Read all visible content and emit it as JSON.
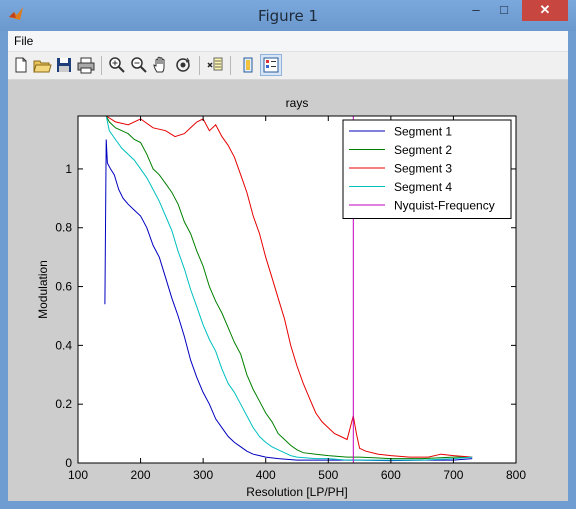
{
  "window": {
    "title": "Figure 1",
    "minimize": "‒",
    "maximize": "□",
    "close": "✕"
  },
  "menu": {
    "file": "File"
  },
  "toolbar": [
    "new-figure",
    "open-file",
    "save",
    "print",
    "zoom-in",
    "zoom-out",
    "pan",
    "rotate-3d",
    "insert-colorbar",
    "toggle-plot-tools",
    "show-plot-tools"
  ],
  "colors": {
    "segment1": "#0000bf",
    "segment2": "#007f00",
    "segment3": "#e60000",
    "segment4": "#00bfbf",
    "nyquist": "#bf00bf"
  },
  "chart_data": {
    "type": "line",
    "title": "rays",
    "xlabel": "Resolution [LP/PH]",
    "ylabel": "Modulation",
    "xlim": [
      100,
      800
    ],
    "ylim": [
      0,
      1.18
    ],
    "xticks": [
      "100",
      "200",
      "300",
      "400",
      "500",
      "600",
      "700",
      "800"
    ],
    "yticks": [
      "0",
      "0.2",
      "0.4",
      "0.6",
      "0.8",
      "1"
    ],
    "legend_position": "top-right",
    "grid": false,
    "series": [
      {
        "name": "Segment 1",
        "color": "#0000bf",
        "points": [
          [
            143,
            0.54
          ],
          [
            144,
            0.8
          ],
          [
            145,
            1.1
          ],
          [
            147,
            1.02
          ],
          [
            152,
            1.0
          ],
          [
            158,
            0.98
          ],
          [
            165,
            0.93
          ],
          [
            172,
            0.9
          ],
          [
            180,
            0.88
          ],
          [
            190,
            0.86
          ],
          [
            200,
            0.84
          ],
          [
            210,
            0.8
          ],
          [
            220,
            0.74
          ],
          [
            230,
            0.7
          ],
          [
            240,
            0.63
          ],
          [
            250,
            0.56
          ],
          [
            260,
            0.5
          ],
          [
            270,
            0.43
          ],
          [
            280,
            0.35
          ],
          [
            290,
            0.29
          ],
          [
            300,
            0.24
          ],
          [
            310,
            0.2
          ],
          [
            320,
            0.15
          ],
          [
            330,
            0.12
          ],
          [
            340,
            0.09
          ],
          [
            350,
            0.07
          ],
          [
            360,
            0.055
          ],
          [
            370,
            0.04
          ],
          [
            380,
            0.03
          ],
          [
            390,
            0.025
          ],
          [
            400,
            0.02
          ],
          [
            420,
            0.015
          ],
          [
            450,
            0.01
          ],
          [
            500,
            0.01
          ],
          [
            550,
            0.01
          ],
          [
            600,
            0.008
          ],
          [
            650,
            0.01
          ],
          [
            700,
            0.01
          ],
          [
            730,
            0.015
          ]
        ]
      },
      {
        "name": "Segment 2",
        "color": "#007f00",
        "points": [
          [
            145,
            1.18
          ],
          [
            150,
            1.16
          ],
          [
            160,
            1.14
          ],
          [
            170,
            1.13
          ],
          [
            180,
            1.12
          ],
          [
            190,
            1.1
          ],
          [
            200,
            1.09
          ],
          [
            210,
            1.05
          ],
          [
            220,
            1.0
          ],
          [
            230,
            0.98
          ],
          [
            240,
            0.95
          ],
          [
            250,
            0.92
          ],
          [
            260,
            0.88
          ],
          [
            270,
            0.82
          ],
          [
            280,
            0.78
          ],
          [
            290,
            0.72
          ],
          [
            300,
            0.67
          ],
          [
            310,
            0.6
          ],
          [
            320,
            0.55
          ],
          [
            330,
            0.51
          ],
          [
            340,
            0.46
          ],
          [
            350,
            0.41
          ],
          [
            360,
            0.37
          ],
          [
            370,
            0.3
          ],
          [
            380,
            0.25
          ],
          [
            390,
            0.21
          ],
          [
            400,
            0.17
          ],
          [
            410,
            0.14
          ],
          [
            420,
            0.1
          ],
          [
            430,
            0.08
          ],
          [
            440,
            0.06
          ],
          [
            450,
            0.045
          ],
          [
            460,
            0.035
          ],
          [
            480,
            0.03
          ],
          [
            500,
            0.025
          ],
          [
            530,
            0.02
          ],
          [
            550,
            0.02
          ],
          [
            600,
            0.015
          ],
          [
            650,
            0.015
          ],
          [
            700,
            0.02
          ],
          [
            730,
            0.02
          ]
        ]
      },
      {
        "name": "Segment 3",
        "color": "#e60000",
        "points": [
          [
            145,
            1.18
          ],
          [
            160,
            1.16
          ],
          [
            180,
            1.15
          ],
          [
            200,
            1.17
          ],
          [
            220,
            1.14
          ],
          [
            240,
            1.13
          ],
          [
            255,
            1.11
          ],
          [
            270,
            1.12
          ],
          [
            280,
            1.14
          ],
          [
            290,
            1.16
          ],
          [
            300,
            1.17
          ],
          [
            310,
            1.13
          ],
          [
            320,
            1.15
          ],
          [
            330,
            1.11
          ],
          [
            340,
            1.08
          ],
          [
            350,
            1.04
          ],
          [
            360,
            0.98
          ],
          [
            370,
            0.92
          ],
          [
            380,
            0.84
          ],
          [
            390,
            0.78
          ],
          [
            400,
            0.7
          ],
          [
            410,
            0.63
          ],
          [
            420,
            0.56
          ],
          [
            430,
            0.49
          ],
          [
            440,
            0.4
          ],
          [
            450,
            0.33
          ],
          [
            460,
            0.27
          ],
          [
            470,
            0.22
          ],
          [
            480,
            0.17
          ],
          [
            490,
            0.14
          ],
          [
            500,
            0.12
          ],
          [
            510,
            0.1
          ],
          [
            520,
            0.09
          ],
          [
            530,
            0.08
          ],
          [
            535,
            0.12
          ],
          [
            540,
            0.16
          ],
          [
            545,
            0.1
          ],
          [
            550,
            0.05
          ],
          [
            560,
            0.04
          ],
          [
            580,
            0.03
          ],
          [
            600,
            0.025
          ],
          [
            630,
            0.02
          ],
          [
            660,
            0.02
          ],
          [
            680,
            0.03
          ],
          [
            700,
            0.025
          ],
          [
            730,
            0.02
          ]
        ]
      },
      {
        "name": "Segment 4",
        "color": "#00bfbf",
        "points": [
          [
            145,
            1.18
          ],
          [
            150,
            1.13
          ],
          [
            160,
            1.1
          ],
          [
            170,
            1.07
          ],
          [
            180,
            1.05
          ],
          [
            190,
            1.03
          ],
          [
            200,
            1.0
          ],
          [
            210,
            0.97
          ],
          [
            220,
            0.93
          ],
          [
            230,
            0.89
          ],
          [
            240,
            0.84
          ],
          [
            250,
            0.79
          ],
          [
            260,
            0.72
          ],
          [
            270,
            0.66
          ],
          [
            280,
            0.59
          ],
          [
            290,
            0.53
          ],
          [
            300,
            0.47
          ],
          [
            310,
            0.42
          ],
          [
            320,
            0.38
          ],
          [
            330,
            0.32
          ],
          [
            340,
            0.27
          ],
          [
            350,
            0.24
          ],
          [
            360,
            0.2
          ],
          [
            370,
            0.16
          ],
          [
            380,
            0.12
          ],
          [
            390,
            0.09
          ],
          [
            400,
            0.07
          ],
          [
            410,
            0.055
          ],
          [
            420,
            0.045
          ],
          [
            430,
            0.035
          ],
          [
            440,
            0.025
          ],
          [
            450,
            0.02
          ],
          [
            480,
            0.015
          ],
          [
            500,
            0.015
          ],
          [
            530,
            0.01
          ],
          [
            560,
            0.01
          ],
          [
            600,
            0.01
          ],
          [
            650,
            0.01
          ],
          [
            700,
            0.015
          ],
          [
            730,
            0.02
          ]
        ]
      },
      {
        "name": "Nyquist-Frequency",
        "color": "#bf00bf",
        "points": [
          [
            540,
            0
          ],
          [
            540,
            1.18
          ]
        ]
      }
    ]
  }
}
